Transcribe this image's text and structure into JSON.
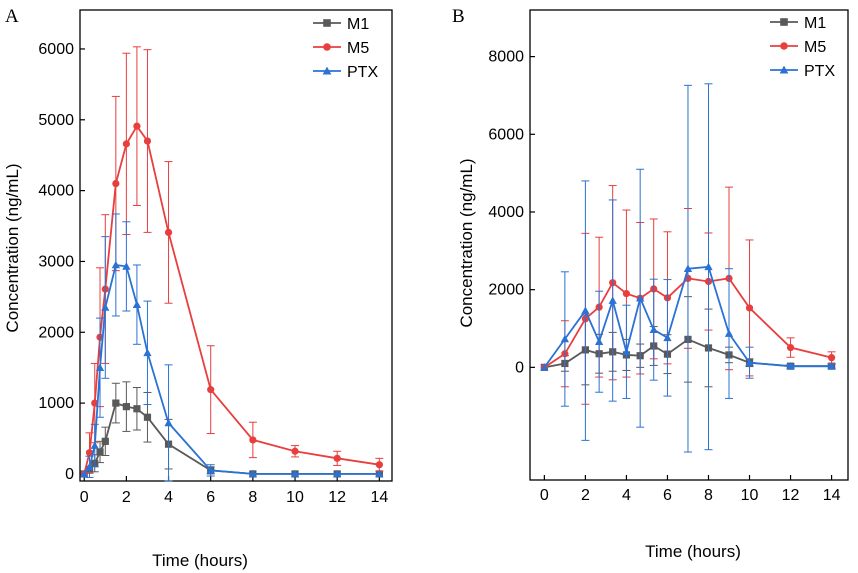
{
  "chart_data": [
    {
      "type": "line",
      "panel_label": "A",
      "xlabel": "Time (hours)",
      "ylabel": "Concentration (ng/mL)",
      "xlim": [
        -0.2,
        14.6
      ],
      "ylim": [
        -100,
        6550
      ],
      "xticks": [
        0,
        2,
        4,
        6,
        8,
        10,
        12,
        14
      ],
      "yticks": [
        0,
        1000,
        2000,
        3000,
        4000,
        5000,
        6000
      ],
      "legend_position": "top-right",
      "series": [
        {
          "name": "M1",
          "color": "#595959",
          "marker": "square",
          "x": [
            0,
            0.25,
            0.5,
            0.75,
            1,
            1.5,
            2,
            2.5,
            3,
            4,
            6,
            8,
            10,
            12,
            14
          ],
          "y": [
            0,
            60,
            150,
            310,
            460,
            1000,
            950,
            920,
            800,
            420,
            50,
            0,
            0,
            0,
            0
          ],
          "err": [
            0,
            50,
            120,
            150,
            200,
            280,
            350,
            300,
            350,
            350,
            50,
            0,
            0,
            0,
            0
          ]
        },
        {
          "name": "M5",
          "color": "#e83e3e",
          "marker": "circle",
          "x": [
            0,
            0.25,
            0.5,
            0.75,
            1,
            1.5,
            2,
            2.5,
            3,
            4,
            6,
            8,
            10,
            12,
            14
          ],
          "y": [
            0,
            300,
            1000,
            1930,
            2610,
            4100,
            4660,
            4910,
            4700,
            3410,
            1190,
            480,
            320,
            220,
            130
          ],
          "err": [
            0,
            280,
            560,
            980,
            1050,
            1230,
            1280,
            1120,
            1290,
            1000,
            620,
            250,
            80,
            100,
            90
          ]
        },
        {
          "name": "PTX",
          "color": "#2a72d4",
          "marker": "triangle",
          "x": [
            0,
            0.25,
            0.5,
            0.75,
            1,
            1.5,
            2,
            2.5,
            3,
            4,
            6,
            8,
            10,
            12,
            14
          ],
          "y": [
            0,
            100,
            400,
            1500,
            2350,
            2950,
            2930,
            2390,
            1710,
            720,
            50,
            0,
            0,
            0,
            0
          ],
          "err": [
            0,
            150,
            300,
            700,
            1000,
            720,
            630,
            560,
            730,
            820,
            80,
            0,
            0,
            0,
            0
          ]
        }
      ]
    },
    {
      "type": "line",
      "panel_label": "B",
      "xlabel": "Time (hours)",
      "ylabel": "Concentration (ng/mL)",
      "xlim": [
        -0.7,
        14.8
      ],
      "ylim": [
        -2900,
        9200
      ],
      "xticks": [
        0,
        2,
        4,
        6,
        8,
        10,
        12,
        14
      ],
      "yticks": [
        0,
        2000,
        4000,
        6000,
        8000
      ],
      "legend_position": "top-right",
      "series": [
        {
          "name": "M1",
          "color": "#595959",
          "marker": "square",
          "x": [
            0,
            1,
            2,
            2.67,
            3.33,
            4,
            4.67,
            5.33,
            6,
            7,
            8,
            9,
            10,
            12,
            14
          ],
          "y": [
            0,
            100,
            450,
            350,
            400,
            320,
            300,
            550,
            340,
            720,
            500,
            320,
            120,
            30,
            30
          ],
          "err": [
            0,
            200,
            900,
            500,
            500,
            400,
            300,
            500,
            500,
            1100,
            1000,
            200,
            100,
            50,
            50
          ]
        },
        {
          "name": "M5",
          "color": "#e83e3e",
          "marker": "circle",
          "x": [
            0,
            1,
            2,
            2.67,
            3.33,
            4,
            4.67,
            5.33,
            6,
            7,
            8,
            9,
            10,
            12,
            14
          ],
          "y": [
            0,
            350,
            1250,
            1550,
            2180,
            1900,
            1780,
            2020,
            1790,
            2290,
            2210,
            2290,
            1530,
            510,
            250
          ],
          "err": [
            0,
            850,
            2200,
            1800,
            2500,
            2150,
            1950,
            1800,
            1700,
            1800,
            1250,
            2350,
            1750,
            250,
            150
          ]
        },
        {
          "name": "PTX",
          "color": "#2a72d4",
          "marker": "triangle",
          "x": [
            0,
            1,
            2,
            2.67,
            3.33,
            4,
            4.67,
            5.33,
            6,
            7,
            8,
            9,
            10,
            12,
            14
          ],
          "y": [
            0,
            730,
            1460,
            660,
            1720,
            400,
            1780,
            970,
            760,
            2540,
            2590,
            870,
            120,
            30,
            30
          ],
          "err": [
            0,
            1730,
            3340,
            1300,
            2590,
            1200,
            3320,
            1300,
            1500,
            4720,
            4710,
            1670,
            400,
            50,
            50
          ]
        }
      ]
    }
  ]
}
